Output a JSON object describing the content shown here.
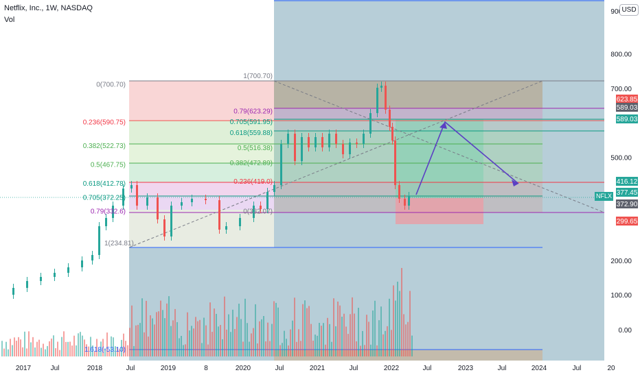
{
  "header": {
    "title": "Netflix, Inc., 1W, NASDAQ",
    "volume_label": "Vol",
    "currency": "USD"
  },
  "colors": {
    "up": "#26a69a",
    "down": "#ef5350",
    "projection_arrow": "#5b3fc4",
    "last_price": "#26a69a"
  },
  "price_axis": [
    {
      "v": 900,
      "label": "900.00"
    },
    {
      "v": 800,
      "label": "800.00"
    },
    {
      "v": 700,
      "label": "700.00"
    },
    {
      "v": 500,
      "label": "500.00"
    },
    {
      "v": 200,
      "label": "200.00"
    },
    {
      "v": 100,
      "label": "100.00"
    },
    {
      "v": 0,
      "label": "0.00"
    }
  ],
  "badges": [
    {
      "v": 623.85,
      "label": "623.85",
      "color": "#ef5350"
    },
    {
      "v": 589.03,
      "label": "589.03",
      "color": "#5d606b"
    },
    {
      "v": 589.03,
      "label": "589.03",
      "color": "#26a69a"
    },
    {
      "v": 416.12,
      "label": "416.12",
      "color": "#26a69a"
    },
    {
      "v": 377.45,
      "label": "377.45",
      "color": "#26a69a"
    },
    {
      "v": 372.9,
      "label": "372.90",
      "color": "#5d606b"
    },
    {
      "v": 299.65,
      "label": "299.65",
      "color": "#ef5350"
    }
  ],
  "ticker_tag": "NFLX",
  "time_axis": [
    "2017",
    "Jul",
    "2018",
    "Jul",
    "2019",
    "8",
    "2020",
    "Jul",
    "2021",
    "Jul",
    "2022",
    "Jul",
    "2023",
    "Jul",
    "2024",
    "Jul",
    "20"
  ],
  "fib_left": [
    {
      "label": "0(700.70)",
      "v": 700.7,
      "color": "#787b86"
    },
    {
      "label": "0.236(590.75)",
      "v": 590.75,
      "color": "#f23645"
    },
    {
      "label": "0.382(522.73)",
      "v": 522.73,
      "color": "#4caf50"
    },
    {
      "label": "0.5(467.75)",
      "v": 467.75,
      "color": "#4caf50"
    },
    {
      "label": "0.618(412.78)",
      "v": 412.78,
      "color": "#089981"
    },
    {
      "label": "0.705(372.25)",
      "v": 372.25,
      "color": "#089981"
    },
    {
      "label": "0.79(332.6)",
      "v": 332.6,
      "color": "#9c27b0"
    },
    {
      "label": "1(234.81)",
      "v": 234.81,
      "color": "#787b86"
    },
    {
      "label": "1.618(-53.10)",
      "v": -53.1,
      "color": "#2962ff"
    }
  ],
  "fib_right": [
    {
      "label": "1(700.70)",
      "v": 700.7,
      "color": "#787b86"
    },
    {
      "label": "0.79(623.29)",
      "v": 623.29,
      "color": "#9c27b0"
    },
    {
      "label": "0.705(591.95)",
      "v": 591.95,
      "color": "#089981"
    },
    {
      "label": "0.618(559.88)",
      "v": 559.88,
      "color": "#089981"
    },
    {
      "label": "0.5(516.38)",
      "v": 516.38,
      "color": "#4caf50"
    },
    {
      "label": "0.382(472.89)",
      "v": 472.89,
      "color": "#4caf50"
    },
    {
      "label": "0.236(419.0)",
      "v": 419.0,
      "color": "#f23645"
    },
    {
      "label": "0(332.07)",
      "v": 332.07,
      "color": "#787b86"
    }
  ]
}
